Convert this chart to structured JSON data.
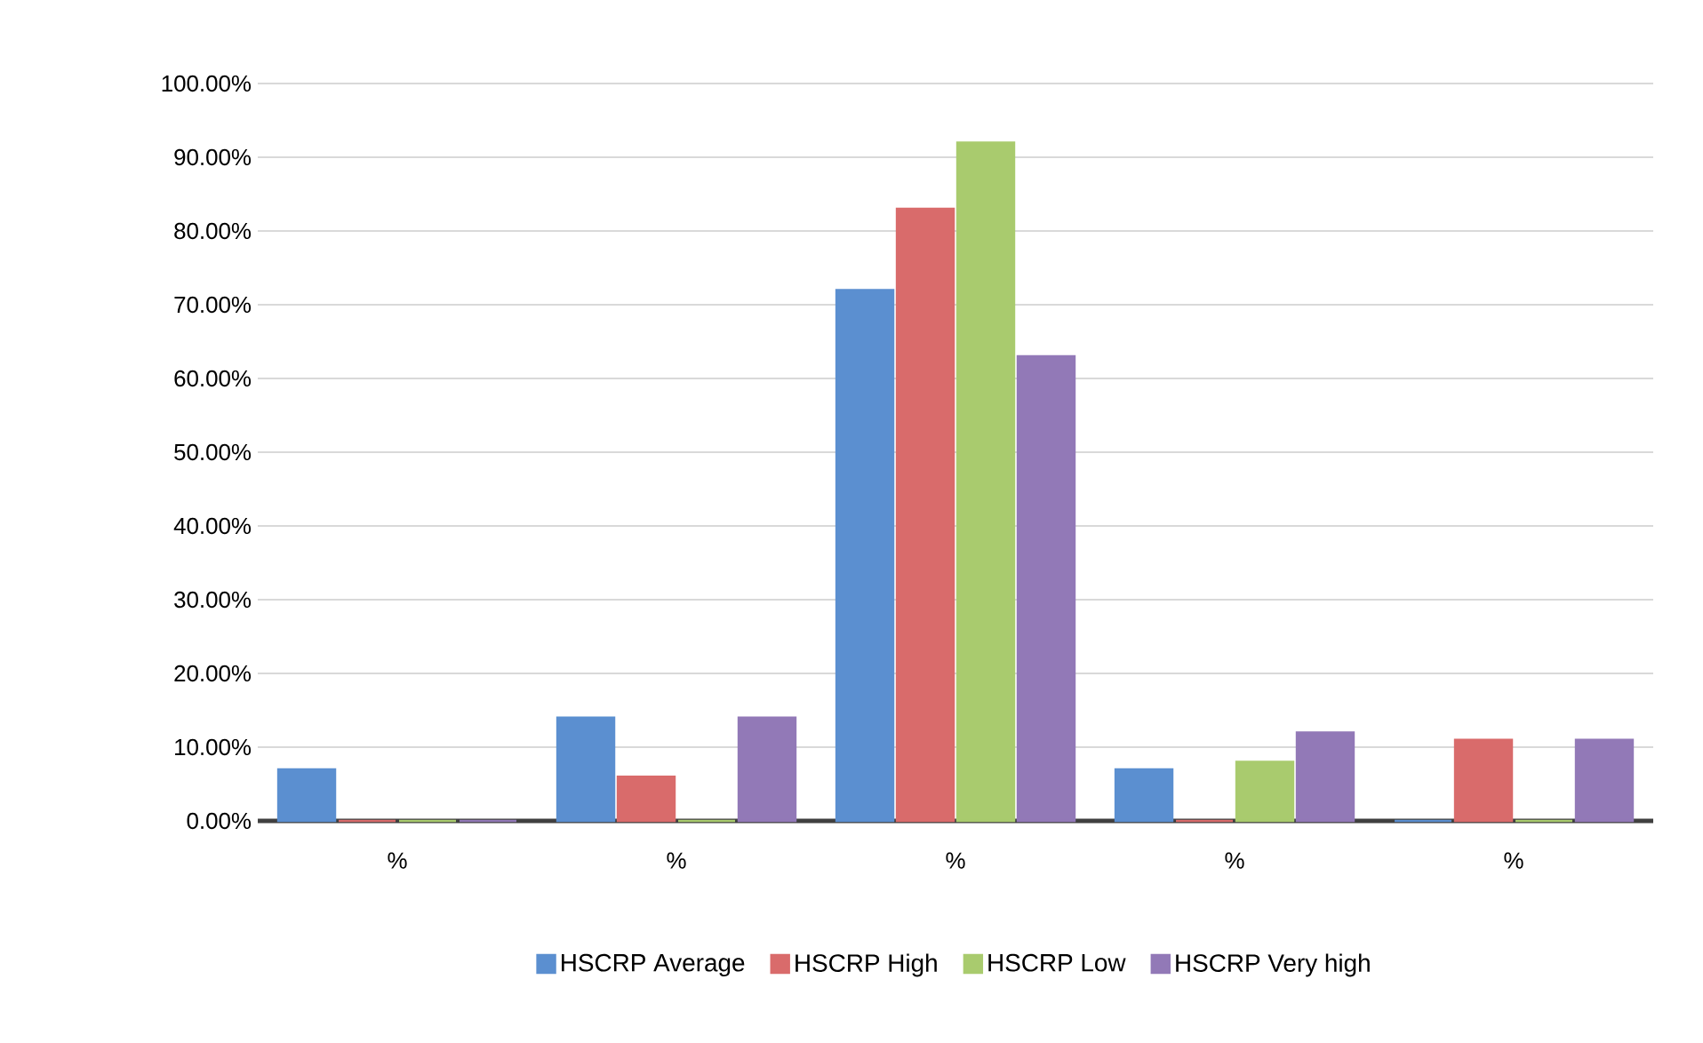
{
  "chart_data": {
    "type": "bar",
    "categories": [
      "%",
      "%",
      "%",
      "%",
      "%"
    ],
    "series": [
      {
        "name": "HSCRP Average",
        "color": "#5b8fd0",
        "values": [
          7,
          14,
          72,
          7,
          0
        ]
      },
      {
        "name": "HSCRP High",
        "color": "#d96b6b",
        "values": [
          0,
          6,
          83,
          0,
          11
        ]
      },
      {
        "name": "HSCRP Low",
        "color": "#a9cb6e",
        "values": [
          0,
          0,
          92,
          8,
          0
        ]
      },
      {
        "name": "HSCRP Very high",
        "color": "#9279b7",
        "values": [
          0,
          14,
          63,
          12,
          11
        ]
      }
    ],
    "ylim": [
      0,
      100
    ],
    "yticks": [
      {
        "value": 0,
        "label": "0.00%"
      },
      {
        "value": 10,
        "label": "10.00%"
      },
      {
        "value": 20,
        "label": "20.00%"
      },
      {
        "value": 30,
        "label": "30.00%"
      },
      {
        "value": 40,
        "label": "40.00%"
      },
      {
        "value": 50,
        "label": "50.00%"
      },
      {
        "value": 60,
        "label": "60.00%"
      },
      {
        "value": 70,
        "label": "70.00%"
      },
      {
        "value": 80,
        "label": "80.00%"
      },
      {
        "value": 90,
        "label": "90.00%"
      },
      {
        "value": 100,
        "label": "100.00%"
      }
    ],
    "grid": "y",
    "legend": "bottom"
  }
}
